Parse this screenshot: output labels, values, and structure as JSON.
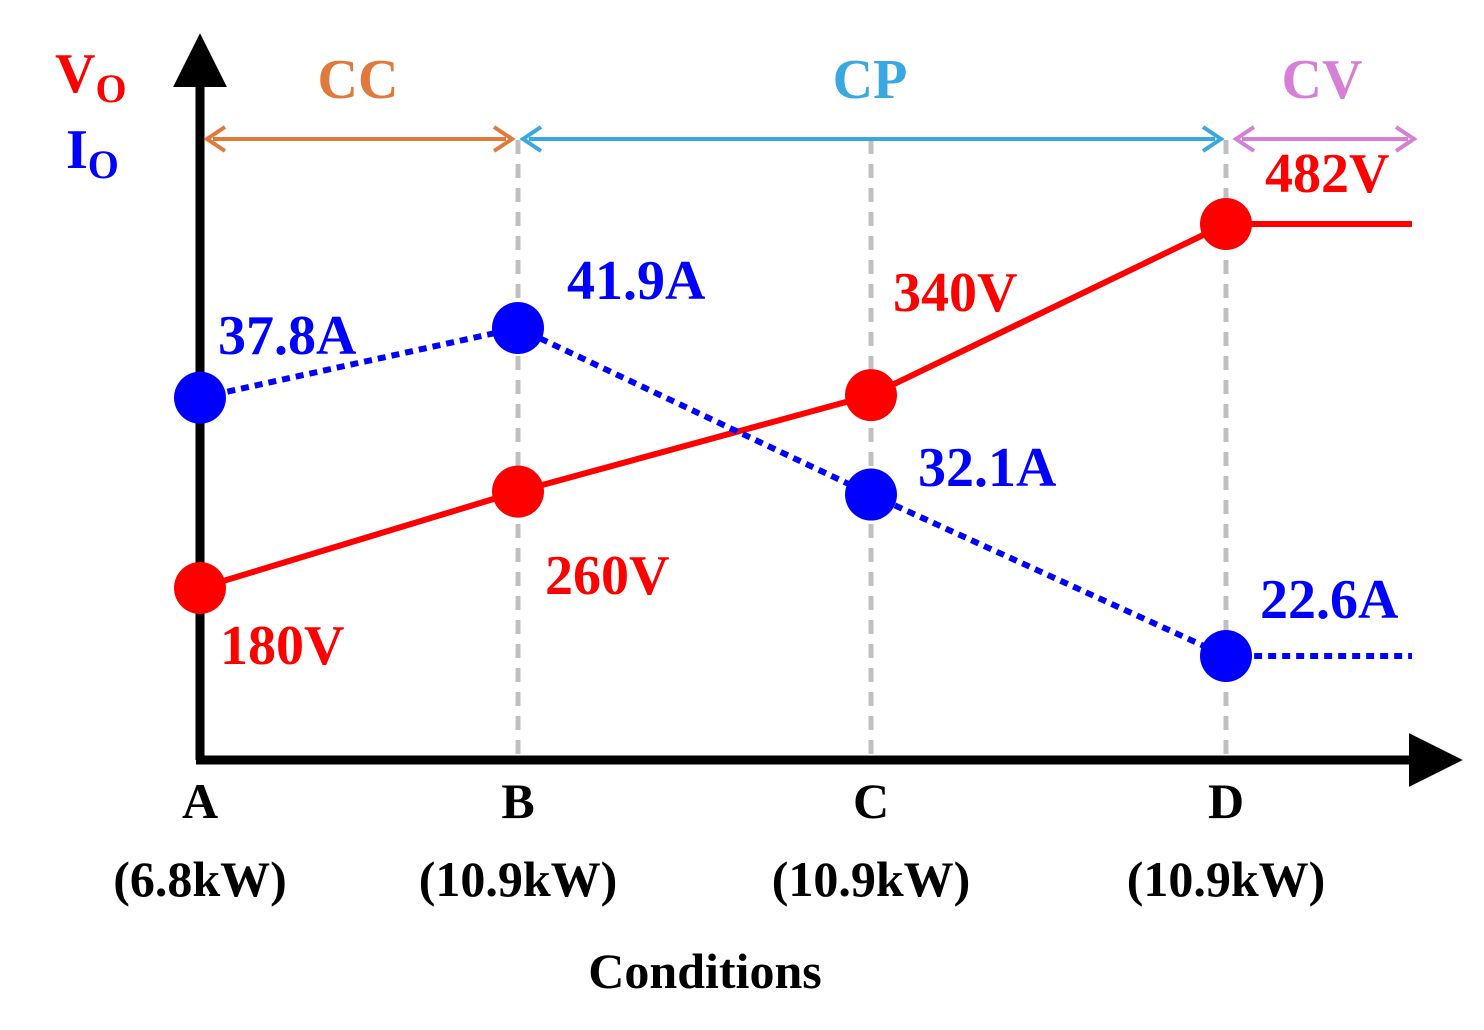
{
  "chart_data": {
    "type": "line",
    "xlabel": "Conditions",
    "categories": [
      {
        "letter": "A",
        "power": "(6.8kW)"
      },
      {
        "letter": "B",
        "power": "(10.9kW)"
      },
      {
        "letter": "C",
        "power": "(10.9kW)"
      },
      {
        "letter": "D",
        "power": "(10.9kW)"
      }
    ],
    "y_labels": {
      "voltage": {
        "main": "V",
        "sub": "O"
      },
      "current": {
        "main": "I",
        "sub": "O"
      }
    },
    "series": [
      {
        "name": "Vo",
        "unit": "V",
        "color": "#ff0000",
        "style": "solid",
        "values": [
          180,
          260,
          340,
          482
        ],
        "labels": [
          "180V",
          "260V",
          "340V",
          "482V"
        ],
        "extends_after_last": true
      },
      {
        "name": "Io",
        "unit": "A",
        "color": "#0000ff",
        "style": "dotted",
        "values": [
          37.8,
          41.9,
          32.1,
          22.6
        ],
        "labels": [
          "37.8A",
          "41.9A",
          "32.1A",
          "22.6A"
        ],
        "extends_after_last": true
      }
    ],
    "regions": [
      {
        "label": "CC",
        "from": "A",
        "to": "B",
        "color": "#e07a3c"
      },
      {
        "label": "CP",
        "from": "B",
        "to": "D",
        "color": "#3aa8e0"
      },
      {
        "label": "CV",
        "from": "D",
        "to": "beyond",
        "color": "#d67fd6"
      }
    ],
    "guide_color": "#c0c0c0"
  }
}
